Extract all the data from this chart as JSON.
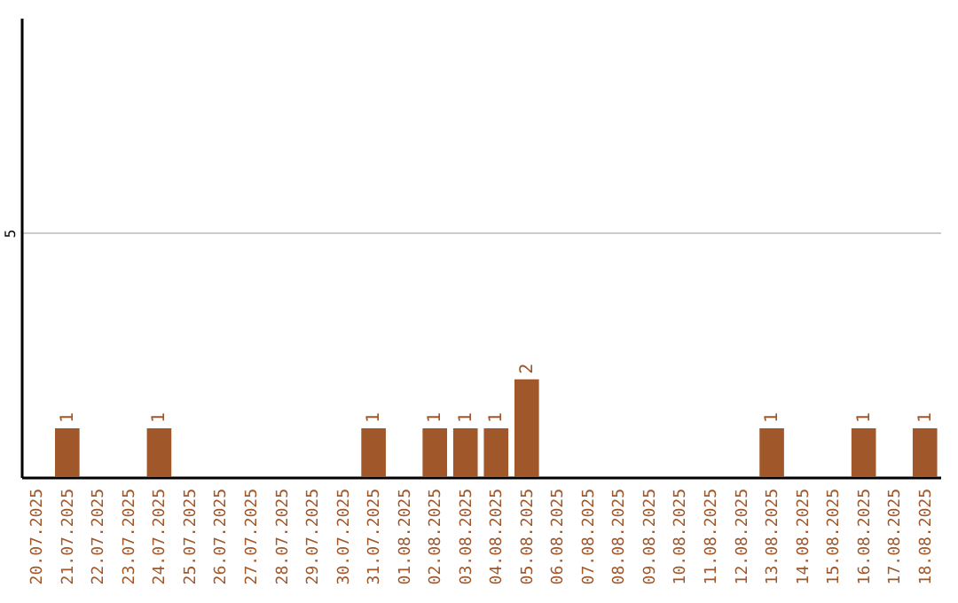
{
  "chart_data": {
    "type": "bar",
    "categories": [
      "20.07.2025",
      "21.07.2025",
      "22.07.2025",
      "23.07.2025",
      "24.07.2025",
      "25.07.2025",
      "26.07.2025",
      "27.07.2025",
      "28.07.2025",
      "29.07.2025",
      "30.07.2025",
      "31.07.2025",
      "01.08.2025",
      "02.08.2025",
      "03.08.2025",
      "04.08.2025",
      "05.08.2025",
      "06.08.2025",
      "07.08.2025",
      "08.08.2025",
      "09.08.2025",
      "10.08.2025",
      "11.08.2025",
      "12.08.2025",
      "13.08.2025",
      "14.08.2025",
      "15.08.2025",
      "16.08.2025",
      "17.08.2025",
      "18.08.2025"
    ],
    "values": [
      0,
      1,
      0,
      0,
      1,
      0,
      0,
      0,
      0,
      0,
      0,
      1,
      0,
      1,
      1,
      1,
      2,
      0,
      0,
      0,
      0,
      0,
      0,
      0,
      1,
      0,
      0,
      1,
      0,
      1
    ],
    "value_labels": [
      null,
      "1",
      null,
      null,
      "1",
      null,
      null,
      null,
      null,
      null,
      null,
      "1",
      null,
      "1",
      "1",
      "1",
      "2",
      null,
      null,
      null,
      null,
      null,
      null,
      null,
      "1",
      null,
      null,
      "1",
      null,
      "1"
    ],
    "color": "#a0572a",
    "ylim": [
      0,
      9.4
    ],
    "yticks": [
      5
    ],
    "grid": "y"
  }
}
